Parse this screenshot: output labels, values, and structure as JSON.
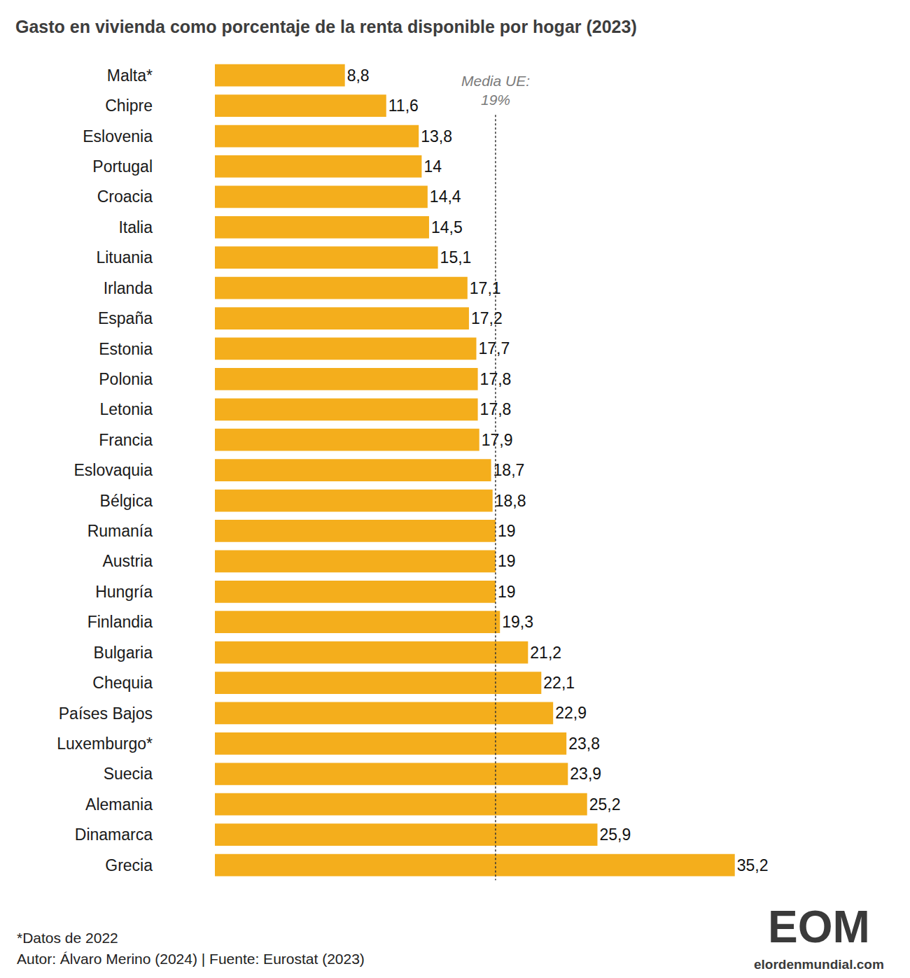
{
  "chart_data": {
    "type": "bar",
    "title": "Gasto en vivienda como porcentaje de la renta disponible por hogar (2023)",
    "orientation": "horizontal",
    "categories": [
      "Malta*",
      "Chipre",
      "Eslovenia",
      "Portugal",
      "Croacia",
      "Italia",
      "Lituania",
      "Irlanda",
      "España",
      "Estonia",
      "Polonia",
      "Letonia",
      "Francia",
      "Eslovaquia",
      "Bélgica",
      "Rumanía",
      "Austria",
      "Hungría",
      "Finlandia",
      "Bulgaria",
      "Chequia",
      "Países Bajos",
      "Luxemburgo*",
      "Suecia",
      "Alemania",
      "Dinamarca",
      "Grecia"
    ],
    "values": [
      8.8,
      11.6,
      13.8,
      14,
      14.4,
      14.5,
      15.1,
      17.1,
      17.2,
      17.7,
      17.8,
      17.8,
      17.9,
      18.7,
      18.8,
      19,
      19,
      19,
      19.3,
      21.2,
      22.1,
      22.9,
      23.8,
      23.9,
      25.2,
      25.9,
      35.2
    ],
    "value_labels": [
      "8,8",
      "11,6",
      "13,8",
      "14",
      "14,4",
      "14,5",
      "15,1",
      "17,1",
      "17,2",
      "17,7",
      "17,8",
      "17,8",
      "17,9",
      "18,7",
      "18,8",
      "19",
      "19",
      "19",
      "19,3",
      "21,2",
      "22,1",
      "22,9",
      "23,8",
      "23,9",
      "25,2",
      "25,9",
      "35,2"
    ],
    "color": "#f4ae1c",
    "xlim": [
      0,
      40
    ],
    "data_labels": true,
    "tick_labels": "y",
    "grid": false,
    "average": {
      "label": "Media UE:",
      "value": 19,
      "value_label": "19%"
    }
  },
  "footer": {
    "notes": [
      "*Datos de 2022",
      "Autor: Álvaro Merino (2024) | Fuente: Eurostat (2023)"
    ],
    "logo": "EOM",
    "site": "elordenmundial.com"
  }
}
